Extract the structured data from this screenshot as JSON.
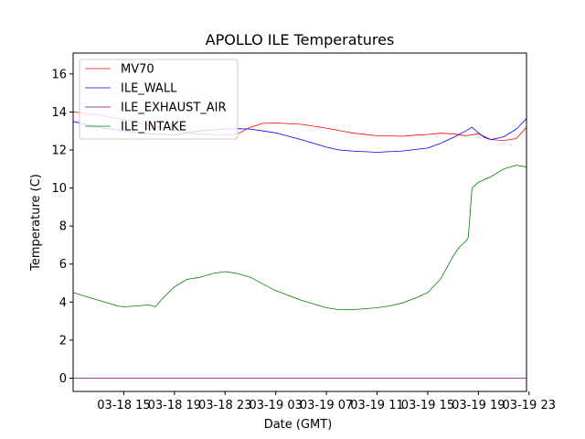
{
  "chart_data": {
    "type": "line",
    "title": "APOLLO ILE Temperatures",
    "xlabel": "Date (GMT)",
    "ylabel": "Temperature (C)",
    "xlim": [
      0.0,
      35.8
    ],
    "ylim": [
      -0.7,
      17.1
    ],
    "x_unit": "hours since 2018-03-18 11:00 GMT",
    "x_ticks": [
      {
        "x": 4,
        "label": "03-18 15"
      },
      {
        "x": 8,
        "label": "03-18 19"
      },
      {
        "x": 12,
        "label": "03-18 23"
      },
      {
        "x": 16,
        "label": "03-19 03"
      },
      {
        "x": 20,
        "label": "03-19 07"
      },
      {
        "x": 24,
        "label": "03-19 11"
      },
      {
        "x": 28,
        "label": "03-19 15"
      },
      {
        "x": 32,
        "label": "03-19 19"
      },
      {
        "x": 36,
        "label": "03-19 23"
      }
    ],
    "y_ticks": [
      0,
      2,
      4,
      6,
      8,
      10,
      12,
      14,
      16
    ],
    "grid": false,
    "legend_position": "top-left",
    "series": [
      {
        "name": "MV70",
        "color": "#ff0000",
        "x": [
          0,
          2,
          4,
          6,
          8,
          9.5,
          11,
          12.5,
          13,
          14,
          15,
          16,
          18,
          20,
          22,
          24,
          26,
          27,
          28,
          29,
          30,
          31,
          32,
          33,
          34,
          35,
          35.8
        ],
        "y": [
          14.0,
          13.85,
          13.6,
          13.3,
          13.05,
          12.85,
          12.82,
          12.8,
          12.85,
          13.2,
          13.4,
          13.42,
          13.35,
          13.15,
          12.9,
          12.75,
          12.72,
          12.78,
          12.82,
          12.88,
          12.85,
          12.75,
          12.85,
          12.55,
          12.5,
          12.6,
          13.2
        ]
      },
      {
        "name": "ILE_WALL",
        "color": "#0000ff",
        "x": [
          0,
          2,
          4,
          6,
          8,
          10,
          12,
          13,
          14,
          15,
          16,
          18,
          20,
          21,
          22,
          24,
          26,
          28,
          29,
          30,
          31,
          31.5,
          32,
          32.5,
          33,
          34,
          35,
          35.8
        ],
        "y": [
          13.5,
          13.2,
          13.0,
          12.85,
          12.8,
          13.0,
          13.1,
          13.12,
          13.1,
          13.0,
          12.9,
          12.55,
          12.15,
          12.0,
          11.95,
          11.88,
          11.95,
          12.1,
          12.35,
          12.65,
          13.0,
          13.2,
          12.9,
          12.65,
          12.55,
          12.7,
          13.1,
          13.65
        ]
      },
      {
        "name": "ILE_EXHAUST_AIR",
        "color": "#800080",
        "x": [
          0,
          35.8
        ],
        "y": [
          0.0,
          0.0
        ]
      },
      {
        "name": "ILE_INTAKE",
        "color": "#008000",
        "x": [
          0,
          1,
          2,
          3,
          3.5,
          4,
          5,
          6,
          6.5,
          7,
          8,
          9,
          10,
          11,
          12,
          13,
          14,
          16,
          18,
          20,
          21,
          22,
          23,
          24,
          25,
          26,
          27,
          28,
          29,
          29.5,
          30,
          30.5,
          31,
          31.2,
          31.5,
          32,
          33,
          34,
          35,
          35.8
        ],
        "y": [
          4.5,
          4.3,
          4.1,
          3.9,
          3.8,
          3.75,
          3.8,
          3.85,
          3.75,
          4.15,
          4.8,
          5.2,
          5.3,
          5.5,
          5.6,
          5.5,
          5.3,
          4.6,
          4.1,
          3.7,
          3.6,
          3.6,
          3.65,
          3.7,
          3.8,
          3.95,
          4.2,
          4.5,
          5.2,
          5.8,
          6.4,
          6.9,
          7.2,
          7.4,
          10.0,
          10.3,
          10.6,
          11.0,
          11.2,
          11.1
        ]
      }
    ]
  }
}
